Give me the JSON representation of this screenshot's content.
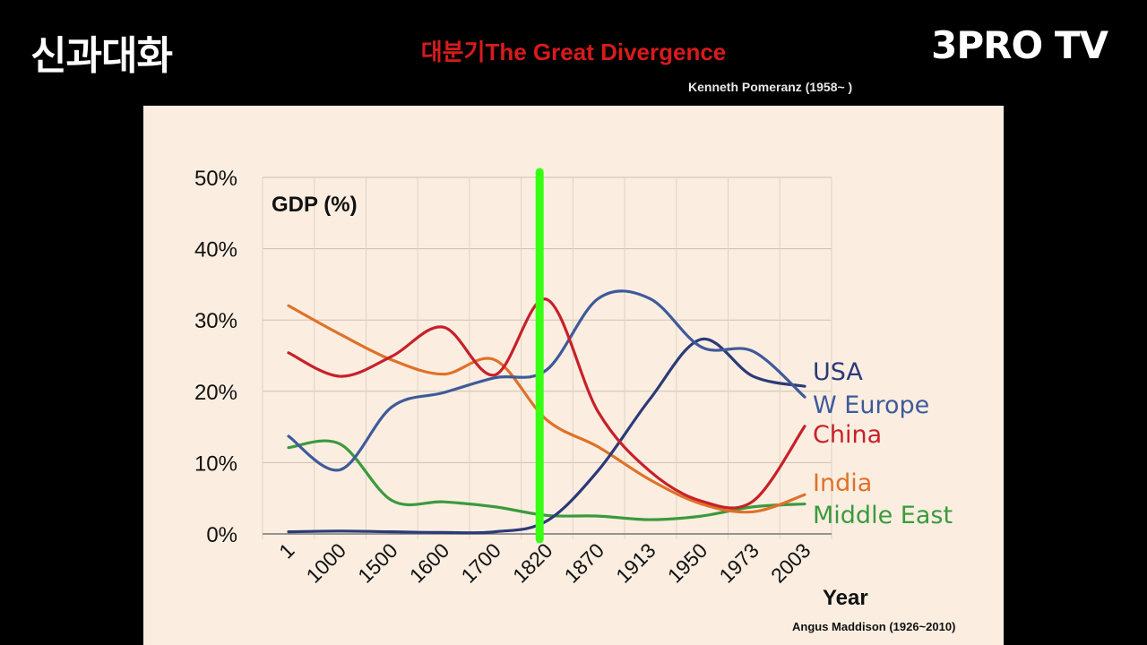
{
  "header": {
    "channel_logo": "신과대화",
    "brand_logo": "3PRO TV",
    "title": "대분기The Great Divergence",
    "author": "Kenneth Pomeranz (1958~ )",
    "credit": "Angus Maddison (1926~2010)"
  },
  "colors": {
    "usa": "#2b3a78",
    "w_europe": "#3e5a9a",
    "china": "#c8202a",
    "india": "#e07128",
    "middle_east": "#3b9a3d",
    "marker": "#39ff14",
    "title": "#d81b1b",
    "slide_bg": "#fbeee1"
  },
  "chart_data": {
    "type": "line",
    "title": "GDP (%)",
    "xlabel": "Year",
    "ylabel": "",
    "ylim": [
      0,
      50
    ],
    "yticks": [
      "0%",
      "10%",
      "20%",
      "30%",
      "40%",
      "50%"
    ],
    "categories": [
      "1",
      "1000",
      "1500",
      "1600",
      "1700",
      "1820",
      "1870",
      "1913",
      "1950",
      "1973",
      "2003"
    ],
    "grid": true,
    "legend": "right end labels",
    "marker_line_at": "1820",
    "series": [
      {
        "name": "USA",
        "values": [
          0.3,
          0.4,
          0.3,
          0.2,
          0.3,
          1.8,
          8.9,
          18.9,
          27.3,
          22.1,
          20.7
        ]
      },
      {
        "name": "W Europe",
        "values": [
          13.7,
          9.0,
          17.8,
          19.8,
          21.9,
          23.0,
          33.0,
          33.0,
          26.2,
          25.6,
          19.2
        ]
      },
      {
        "name": "China",
        "values": [
          25.4,
          22.1,
          24.9,
          29.0,
          22.3,
          32.9,
          17.1,
          8.8,
          4.6,
          4.6,
          15.1
        ]
      },
      {
        "name": "India",
        "values": [
          32.0,
          28.0,
          24.4,
          22.4,
          24.4,
          16.0,
          12.2,
          7.6,
          4.2,
          3.1,
          5.5
        ]
      },
      {
        "name": "Middle East",
        "values": [
          12.1,
          12.6,
          4.7,
          4.5,
          3.8,
          2.6,
          2.5,
          2.0,
          2.5,
          3.8,
          4.2
        ]
      }
    ]
  }
}
